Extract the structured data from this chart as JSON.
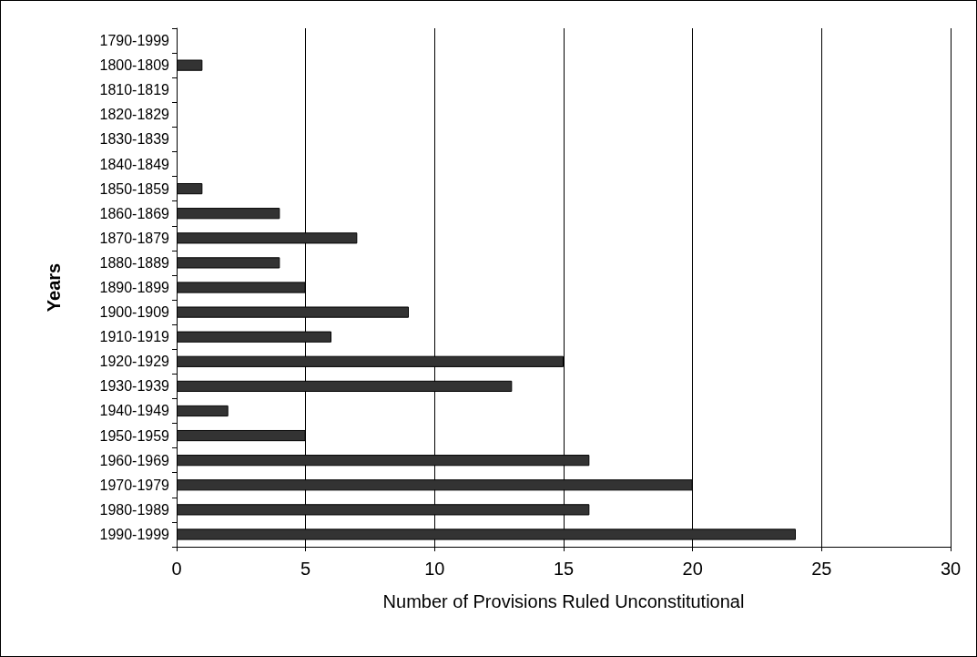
{
  "chart_data": {
    "type": "bar",
    "orientation": "horizontal",
    "xlabel": "Number of Provisions Ruled Unconstitutional",
    "ylabel": "Years",
    "categories": [
      "1790-1999",
      "1800-1809",
      "1810-1819",
      "1820-1829",
      "1830-1839",
      "1840-1849",
      "1850-1859",
      "1860-1869",
      "1870-1879",
      "1880-1889",
      "1890-1899",
      "1900-1909",
      "1910-1919",
      "1920-1929",
      "1930-1939",
      "1940-1949",
      "1950-1959",
      "1960-1969",
      "1970-1979",
      "1980-1989",
      "1990-1999"
    ],
    "values": [
      0,
      1,
      0,
      0,
      0,
      0,
      1,
      4,
      7,
      4,
      5,
      9,
      6,
      15,
      13,
      2,
      5,
      16,
      20,
      16,
      24
    ],
    "color": "#333333",
    "xlim": [
      0,
      30
    ],
    "xticks": [
      0,
      5,
      10,
      15,
      20,
      25,
      30
    ],
    "grid": "x"
  }
}
